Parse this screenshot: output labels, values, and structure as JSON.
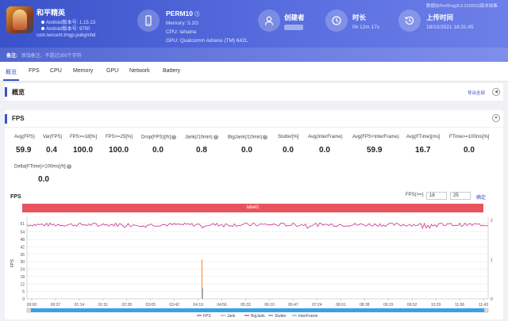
{
  "header": {
    "app_name": "和平精英",
    "app_version": "Android版本号: 1.15.13",
    "app_build": "Android版本号: 9750",
    "package": "com.tencent.tmgp.pubgmhd",
    "device": {
      "title": "PERM10",
      "memory": "Memory: 5.2G",
      "cpu": "CPU: lahaina",
      "gpu": "GPU: Qualcomm Adreno (TM) 642L"
    },
    "creator_label": "创建者",
    "duration_label": "时长",
    "duration_value": "0h 12m 17s",
    "upload_label": "上传时间",
    "upload_value": "18/10/2021 18:31:45",
    "version_note": "数据由PerfDog(6.0.210910)版本收集",
    "note_label": "备注:",
    "note_placeholder": "添加备注，不超过200个字符"
  },
  "tabs": [
    "概览",
    "FPS",
    "CPU",
    "Memory",
    "GPU",
    "Network",
    "Battery"
  ],
  "overview": {
    "title": "概览",
    "export_label": "导出全部"
  },
  "fps_section": {
    "title": "FPS",
    "stats": [
      {
        "label": "Avg(FPS)",
        "value": "59.9",
        "help": false
      },
      {
        "label": "Var(FPS)",
        "value": "0.4",
        "help": false
      },
      {
        "label": "FPS>=18[%]",
        "value": "100.0",
        "help": false
      },
      {
        "label": "FPS>=25[%]",
        "value": "100.0",
        "help": false
      },
      {
        "label": "Drop(FPS)[/h]",
        "value": "0.0",
        "help": true
      },
      {
        "label": "Jank(/10min)",
        "value": "0.8",
        "help": true
      },
      {
        "label": "BigJank(/10min)",
        "value": "0.0",
        "help": true
      },
      {
        "label": "Stutter[%]",
        "value": "0.0",
        "help": false
      },
      {
        "label": "Avg(InterFrame)",
        "value": "0.0",
        "help": false
      },
      {
        "label": "Avg(FPS+InterFrame)",
        "value": "59.9",
        "help": false
      },
      {
        "label": "Avg(FTime)[ms]",
        "value": "16.7",
        "help": false
      },
      {
        "label": "FTime>=100ms[%]",
        "value": "0.0",
        "help": false
      },
      {
        "label": "Delta(FTime)>100ms[/h]",
        "value": "0.0",
        "help": true
      }
    ],
    "chart_title": "FPS",
    "range_label": "FPS(>=)",
    "range_values": [
      "18",
      "25"
    ],
    "confirm_label": "确定",
    "label_bar": "label1"
  },
  "colors": {
    "header": "#3a52c9",
    "fps_line": "#c2338a",
    "jank": "#f28a30",
    "bigjank": "#d9343a",
    "stutter": "#3a7ccf",
    "interframe": "#4bb3e6",
    "label_bar": "#e8545e",
    "scroll_bar": "#3aa0e8"
  },
  "chart_data": {
    "type": "line",
    "ylabel": "FPS",
    "y2label": "Jank",
    "ylim": [
      0,
      66
    ],
    "y_ticks": [
      0,
      6,
      12,
      18,
      24,
      30,
      36,
      42,
      48,
      54,
      61
    ],
    "y2lim": [
      0,
      2
    ],
    "y2_ticks": [
      0,
      1,
      2
    ],
    "x_ticks": [
      "00:00",
      "00:37",
      "01:14",
      "01:51",
      "02:28",
      "03:05",
      "03:42",
      "04:19",
      "04:56",
      "05:33",
      "06:10",
      "06:47",
      "07:24",
      "08:01",
      "08:38",
      "09:15",
      "09:52",
      "10:29",
      "11:06",
      "11:43"
    ],
    "series": [
      {
        "name": "FPS",
        "mean": 59.9,
        "variance": 0.4
      },
      {
        "name": "Jank",
        "events": [
          {
            "time": "04:25",
            "value": 1
          }
        ]
      },
      {
        "name": "BigJank",
        "events": []
      },
      {
        "name": "Stutter",
        "events": []
      },
      {
        "name": "InterFrame",
        "events": []
      }
    ],
    "legend": [
      "FPS",
      "Jank",
      "BigJank",
      "Stutter",
      "InterFrame"
    ],
    "legend_position": "bottom",
    "grid": true
  }
}
